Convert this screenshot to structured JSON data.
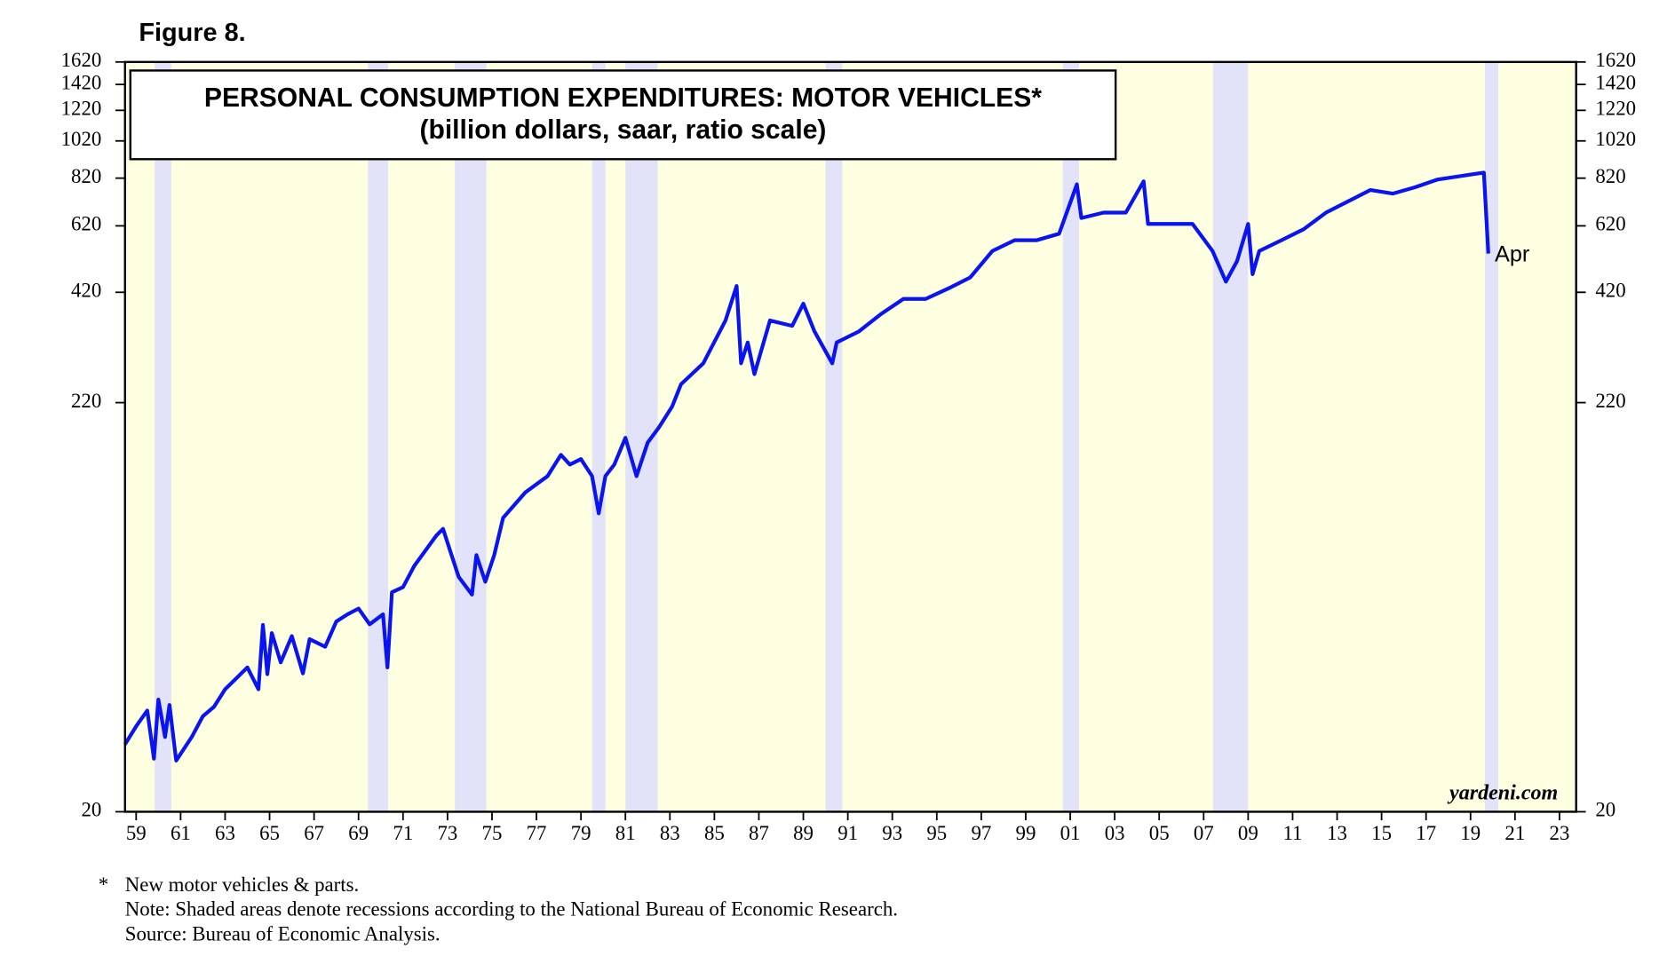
{
  "chart_data": {
    "type": "line",
    "figure_label": "Figure 8.",
    "title": "PERSONAL CONSUMPTION EXPENDITURES: MOTOR VEHICLES*",
    "subtitle": "(billion dollars, saar, ratio scale)",
    "log_scale": true,
    "xlim": [
      1959,
      2024.25
    ],
    "ylim": [
      20,
      1620
    ],
    "yticks": [
      20,
      220,
      420,
      620,
      820,
      1020,
      1220,
      1420,
      1620
    ],
    "xticks": [
      {
        "value": 1959.5,
        "label": "59"
      },
      {
        "value": 1961.5,
        "label": "61"
      },
      {
        "value": 1963.5,
        "label": "63"
      },
      {
        "value": 1965.5,
        "label": "65"
      },
      {
        "value": 1967.5,
        "label": "67"
      },
      {
        "value": 1969.5,
        "label": "69"
      },
      {
        "value": 1971.5,
        "label": "71"
      },
      {
        "value": 1973.5,
        "label": "73"
      },
      {
        "value": 1975.5,
        "label": "75"
      },
      {
        "value": 1977.5,
        "label": "77"
      },
      {
        "value": 1979.5,
        "label": "79"
      },
      {
        "value": 1981.5,
        "label": "81"
      },
      {
        "value": 1983.5,
        "label": "83"
      },
      {
        "value": 1985.5,
        "label": "85"
      },
      {
        "value": 1987.5,
        "label": "87"
      },
      {
        "value": 1989.5,
        "label": "89"
      },
      {
        "value": 1991.5,
        "label": "91"
      },
      {
        "value": 1993.5,
        "label": "93"
      },
      {
        "value": 1995.5,
        "label": "95"
      },
      {
        "value": 1997.5,
        "label": "97"
      },
      {
        "value": 1999.5,
        "label": "99"
      },
      {
        "value": 2001.5,
        "label": "01"
      },
      {
        "value": 2003.5,
        "label": "03"
      },
      {
        "value": 2005.5,
        "label": "05"
      },
      {
        "value": 2007.5,
        "label": "07"
      },
      {
        "value": 2009.5,
        "label": "09"
      },
      {
        "value": 2011.5,
        "label": "11"
      },
      {
        "value": 2013.5,
        "label": "13"
      },
      {
        "value": 2015.5,
        "label": "15"
      },
      {
        "value": 2017.5,
        "label": "17"
      },
      {
        "value": 2019.5,
        "label": "19"
      },
      {
        "value": 2021.5,
        "label": "21"
      },
      {
        "value": 2023.5,
        "label": "23"
      }
    ],
    "recessions": [
      [
        1960.33,
        1961.08
      ],
      [
        1969.92,
        1970.83
      ],
      [
        1973.83,
        1975.25
      ],
      [
        1980.0,
        1980.6
      ],
      [
        1981.5,
        1982.95
      ],
      [
        1990.5,
        1991.25
      ],
      [
        2001.17,
        2001.9
      ],
      [
        2007.92,
        2009.5
      ],
      [
        2020.15,
        2020.75
      ]
    ],
    "x": [
      1959.0,
      1959.5,
      1960.0,
      1960.3,
      1960.5,
      1960.8,
      1961.0,
      1961.3,
      1962.0,
      1962.5,
      1963.0,
      1963.5,
      1964.0,
      1964.5,
      1965.0,
      1965.2,
      1965.4,
      1965.6,
      1966.0,
      1966.5,
      1967.0,
      1967.3,
      1968.0,
      1968.5,
      1969.0,
      1969.5,
      1970.0,
      1970.6,
      1970.8,
      1971.0,
      1971.5,
      1972.0,
      1973.0,
      1973.3,
      1973.6,
      1974.0,
      1974.6,
      1974.8,
      1975.2,
      1975.6,
      1976.0,
      1977.0,
      1978.0,
      1978.6,
      1979.0,
      1979.5,
      1980.0,
      1980.3,
      1980.6,
      1981.0,
      1981.5,
      1982.0,
      1982.5,
      1983.0,
      1983.6,
      1984.0,
      1985.0,
      1986.0,
      1986.5,
      1986.7,
      1987.0,
      1987.3,
      1988.0,
      1989.0,
      1989.5,
      1990.0,
      1990.8,
      1991.0,
      1992.0,
      1993.0,
      1994.0,
      1995.0,
      1996.0,
      1997.0,
      1998.0,
      1999.0,
      2000.0,
      2001.0,
      2001.8,
      2002.0,
      2003.0,
      2004.0,
      2004.8,
      2005.0,
      2006.0,
      2007.0,
      2007.9,
      2008.5,
      2009.0,
      2009.5,
      2009.7,
      2010.0,
      2011.0,
      2012.0,
      2013.0,
      2014.0,
      2015.0,
      2016.0,
      2017.0,
      2018.0,
      2019.0,
      2020.1,
      2020.3
    ],
    "series": [
      {
        "name": "Motor vehicles",
        "color": "#0a14f0",
        "values": [
          29.7,
          33,
          36.2,
          27.3,
          38.6,
          31,
          37.4,
          27,
          31,
          35,
          37,
          41,
          43.7,
          46.6,
          41,
          59.8,
          44.8,
          57,
          48,
          56,
          45,
          55,
          52.6,
          61,
          63.6,
          65.8,
          60,
          63.6,
          46.6,
          72.4,
          74.6,
          84.4,
          101,
          105,
          93,
          79.3,
          71.4,
          90,
          77,
          90,
          112,
          130,
          143,
          162,
          153,
          158,
          143,
          115,
          143,
          153,
          179,
          143,
          174,
          190,
          215,
          245,
          277,
          356,
          436,
          277,
          313,
          260,
          356,
          345,
          393,
          334,
          277,
          313,
          334,
          370,
          404,
          404,
          429,
          458,
          535,
          570,
          570,
          592,
          791,
          649,
          670,
          670,
          805,
          627,
          627,
          627,
          535,
          447,
          504,
          627,
          467,
          535,
          570,
          608,
          670,
          716,
          765,
          749,
          777,
          813,
          829,
          847,
          527
        ]
      }
    ],
    "annotation": "Apr",
    "source_mark": "yardeni.com",
    "footnote_marker": "*",
    "footnotes": [
      "New motor vehicles & parts.",
      "Note: Shaded areas denote recessions according to the National Bureau of Economic Research.",
      "Source: Bureau of Economic Analysis."
    ]
  }
}
